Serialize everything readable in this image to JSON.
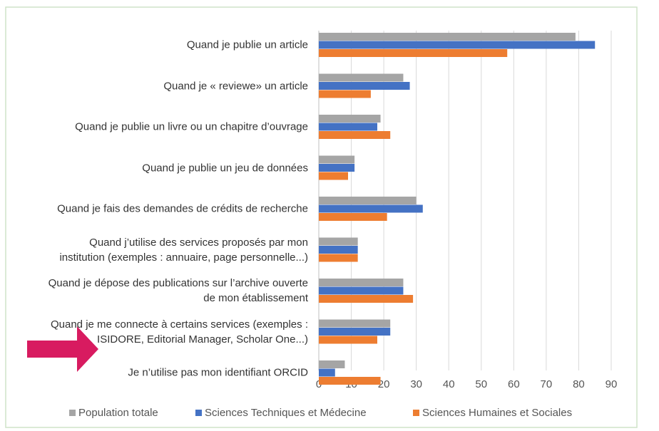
{
  "chart_data": {
    "type": "bar",
    "orientation": "horizontal",
    "categories": [
      "Quand je publie un article",
      "Quand je « reviewe» un article",
      "Quand je publie un livre ou un chapitre d’ouvrage",
      "Quand je publie un jeu de données",
      "Quand je fais des demandes de crédits de recherche",
      "Quand j’utilise des services proposés par mon\ninstitution (exemples : annuaire, page personnelle...)",
      "Quand je dépose des publications sur l’archive ouverte\nde mon établissement",
      "Quand je me connecte à certains services (exemples :\nISIDORE, Editorial Manager, Scholar One...)",
      "Je n’utilise pas mon identifiant ORCID"
    ],
    "series": [
      {
        "name": "Population totale",
        "color": "#a5a5a5",
        "values": [
          79,
          26,
          19,
          11,
          30,
          12,
          26,
          22,
          8
        ]
      },
      {
        "name": "Sciences Techniques et Médecine",
        "color": "#4472c4",
        "values": [
          85,
          28,
          18,
          11,
          32,
          12,
          26,
          22,
          5
        ]
      },
      {
        "name": "Sciences Humaines et Sociales",
        "color": "#ed7d31",
        "values": [
          58,
          16,
          22,
          9,
          21,
          12,
          29,
          18,
          19
        ]
      }
    ],
    "xlim": [
      0,
      90
    ],
    "xticks": [
      0,
      10,
      20,
      30,
      40,
      50,
      60,
      70,
      80,
      90
    ],
    "grid": true,
    "legend": "bottom"
  }
}
